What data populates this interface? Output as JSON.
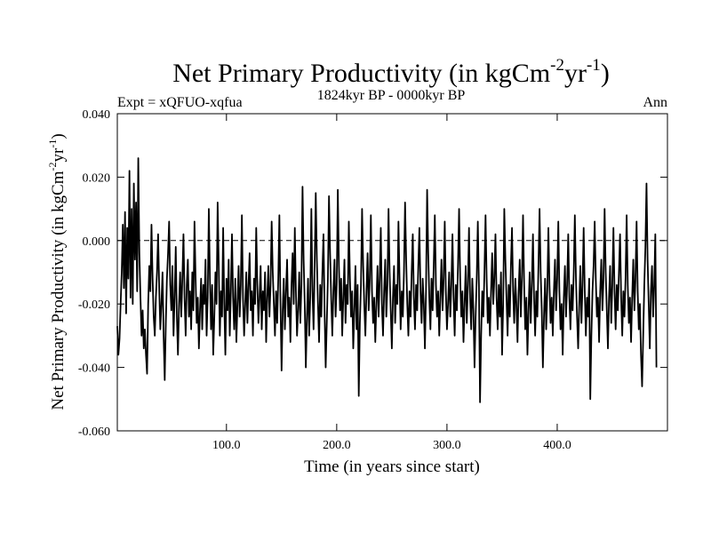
{
  "chart_data": {
    "type": "line",
    "title": "Net Primary Productivity (in kgCm",
    "title_sup1": "-2",
    "title_mid": "yr",
    "title_sup2": "-1",
    "title_end": ")",
    "experiment_label": "Expt = xQFUO-xqfua",
    "period_label": "1824kyr BP - 0000kyr BP",
    "season_label": "Ann",
    "xlabel": "Time (in years since start)",
    "ylabel": "Net Primary Productivity (in kgCm",
    "ylabel_sup1": "-2",
    "ylabel_mid": "yr",
    "ylabel_sup2": "-1",
    "ylabel_end": ")",
    "xlim": [
      1,
      500
    ],
    "ylim": [
      -0.06,
      0.04
    ],
    "x_ticks": [
      100,
      200,
      300,
      400
    ],
    "x_tick_labels": [
      "100.0",
      "200.0",
      "300.0",
      "400.0"
    ],
    "y_ticks": [
      -0.06,
      -0.04,
      -0.02,
      0.0,
      0.02,
      0.04
    ],
    "y_tick_labels": [
      "-0.060",
      "-0.040",
      "-0.020",
      "0.000",
      "0.020",
      "0.040"
    ],
    "reference_line": 0.0,
    "series": [
      {
        "name": "Net Primary Productivity",
        "x_start": 1,
        "x_step": 1,
        "values": [
          -0.027,
          -0.036,
          -0.031,
          -0.02,
          -0.01,
          0.005,
          -0.015,
          0.009,
          -0.023,
          0.004,
          -0.012,
          0.022,
          -0.018,
          0.01,
          -0.02,
          0.018,
          -0.006,
          0.012,
          -0.016,
          0.026,
          -0.004,
          -0.018,
          -0.03,
          -0.022,
          -0.034,
          -0.028,
          -0.036,
          -0.042,
          -0.02,
          -0.008,
          -0.016,
          0.005,
          -0.012,
          -0.024,
          -0.03,
          -0.018,
          -0.01,
          0.002,
          -0.015,
          -0.028,
          -0.02,
          -0.01,
          -0.03,
          -0.044,
          -0.026,
          -0.012,
          -0.004,
          0.006,
          -0.014,
          -0.022,
          -0.008,
          -0.03,
          -0.018,
          -0.002,
          -0.024,
          -0.036,
          -0.02,
          -0.01,
          -0.024,
          -0.012,
          0.002,
          -0.018,
          -0.03,
          -0.014,
          -0.006,
          -0.024,
          -0.016,
          -0.028,
          -0.01,
          -0.022,
          0.006,
          -0.012,
          -0.026,
          -0.018,
          -0.034,
          -0.022,
          -0.012,
          -0.028,
          -0.014,
          -0.02,
          -0.006,
          -0.03,
          -0.018,
          0.01,
          -0.012,
          -0.028,
          -0.014,
          -0.036,
          -0.024,
          -0.01,
          -0.02,
          0.012,
          -0.008,
          -0.03,
          -0.016,
          -0.024,
          0.004,
          -0.02,
          -0.036,
          -0.012,
          -0.022,
          -0.006,
          -0.03,
          -0.016,
          0.002,
          -0.018,
          -0.028,
          -0.012,
          -0.032,
          -0.02,
          -0.008,
          -0.024,
          -0.014,
          0.008,
          -0.018,
          -0.03,
          -0.02,
          -0.01,
          -0.026,
          -0.014,
          -0.004,
          -0.022,
          -0.016,
          -0.03,
          -0.012,
          -0.02,
          0.004,
          -0.014,
          -0.026,
          -0.018,
          -0.008,
          -0.028,
          -0.016,
          -0.022,
          -0.01,
          -0.032,
          -0.018,
          -0.008,
          -0.024,
          -0.014,
          0.006,
          -0.01,
          -0.02,
          -0.03,
          -0.016,
          -0.026,
          -0.012,
          0.008,
          -0.02,
          -0.041,
          -0.022,
          -0.012,
          -0.028,
          -0.016,
          -0.006,
          -0.024,
          -0.018,
          -0.032,
          -0.014,
          -0.004,
          -0.02,
          0.004,
          -0.016,
          -0.03,
          -0.022,
          -0.01,
          -0.026,
          -0.014,
          0.017,
          -0.006,
          -0.02,
          -0.04,
          -0.024,
          -0.012,
          -0.03,
          -0.018,
          0.01,
          -0.016,
          -0.028,
          -0.008,
          0.015,
          -0.006,
          -0.02,
          -0.032,
          -0.014,
          -0.024,
          -0.01,
          0.002,
          -0.022,
          -0.04,
          -0.026,
          -0.012,
          0.014,
          -0.004,
          -0.018,
          -0.03,
          -0.016,
          -0.006,
          -0.024,
          -0.014,
          0.016,
          -0.008,
          -0.022,
          -0.012,
          -0.03,
          -0.018,
          -0.006,
          -0.026,
          -0.014,
          -0.02,
          0.006,
          -0.012,
          -0.024,
          -0.016,
          -0.034,
          -0.022,
          -0.008,
          -0.028,
          -0.014,
          -0.049,
          -0.026,
          -0.014,
          0.01,
          -0.008,
          -0.02,
          -0.03,
          -0.016,
          -0.004,
          -0.022,
          -0.012,
          0.008,
          -0.016,
          -0.026,
          -0.018,
          -0.032,
          -0.02,
          -0.008,
          -0.024,
          -0.012,
          0.004,
          -0.02,
          -0.03,
          -0.016,
          -0.006,
          -0.024,
          -0.014,
          0.01,
          -0.01,
          -0.022,
          -0.034,
          -0.018,
          -0.008,
          -0.026,
          -0.014,
          -0.02,
          0.006,
          -0.012,
          -0.028,
          -0.016,
          -0.024,
          -0.01,
          0.012,
          -0.006,
          -0.02,
          -0.03,
          -0.016,
          -0.024,
          -0.01,
          0.002,
          -0.018,
          -0.028,
          -0.014,
          -0.022,
          -0.008,
          0.004,
          -0.016,
          -0.026,
          -0.012,
          -0.02,
          -0.034,
          -0.016,
          0.016,
          -0.004,
          -0.018,
          -0.028,
          -0.012,
          -0.022,
          -0.008,
          0.008,
          -0.014,
          -0.024,
          -0.016,
          -0.03,
          -0.018,
          -0.006,
          -0.022,
          -0.012,
          0.006,
          -0.016,
          -0.028,
          -0.02,
          -0.01,
          -0.024,
          -0.014,
          0.002,
          -0.018,
          -0.03,
          -0.014,
          -0.022,
          -0.008,
          0.01,
          -0.012,
          -0.024,
          -0.016,
          -0.032,
          -0.02,
          -0.008,
          -0.026,
          -0.014,
          0.004,
          -0.018,
          -0.028,
          -0.012,
          -0.022,
          -0.04,
          -0.024,
          -0.012,
          0.006,
          -0.014,
          -0.051,
          -0.03,
          -0.016,
          -0.024,
          -0.01,
          0.008,
          -0.012,
          -0.026,
          -0.018,
          -0.03,
          -0.016,
          -0.004,
          -0.02,
          -0.012,
          0.002,
          -0.018,
          -0.028,
          -0.014,
          -0.024,
          -0.01,
          -0.036,
          -0.02,
          0.01,
          -0.006,
          -0.018,
          -0.03,
          -0.014,
          -0.024,
          -0.008,
          0.004,
          -0.016,
          -0.026,
          -0.012,
          -0.02,
          -0.032,
          -0.016,
          -0.006,
          -0.024,
          -0.012,
          0.008,
          -0.014,
          -0.028,
          -0.018,
          -0.036,
          -0.022,
          -0.01,
          -0.026,
          -0.014,
          0.002,
          -0.018,
          -0.03,
          -0.016,
          -0.024,
          -0.008,
          0.01,
          -0.01,
          -0.022,
          -0.04,
          -0.024,
          -0.012,
          -0.028,
          -0.016,
          0.004,
          -0.014,
          -0.026,
          -0.018,
          -0.03,
          -0.016,
          -0.006,
          -0.022,
          -0.012,
          0.006,
          -0.016,
          -0.028,
          -0.02,
          -0.036,
          -0.018,
          -0.008,
          -0.024,
          -0.014,
          0.002,
          -0.018,
          -0.028,
          -0.014,
          -0.022,
          -0.01,
          0.008,
          -0.012,
          -0.024,
          -0.034,
          -0.02,
          -0.008,
          -0.026,
          -0.014,
          0.004,
          -0.016,
          -0.03,
          -0.018,
          -0.024,
          -0.012,
          -0.05,
          -0.03,
          -0.016,
          -0.008,
          0.006,
          -0.012,
          -0.024,
          -0.018,
          -0.032,
          -0.016,
          -0.006,
          -0.022,
          -0.012,
          0.01,
          -0.01,
          -0.022,
          -0.034,
          -0.018,
          -0.008,
          -0.026,
          -0.014,
          0.004,
          -0.016,
          -0.028,
          -0.014,
          -0.022,
          -0.01,
          0.002,
          -0.018,
          -0.03,
          -0.016,
          -0.024,
          -0.012,
          0.008,
          -0.014,
          -0.026,
          -0.018,
          -0.032,
          -0.018,
          -0.006,
          -0.022,
          -0.012,
          0.006,
          -0.016,
          -0.028,
          -0.02,
          -0.036,
          -0.046,
          -0.03,
          -0.014,
          -0.002,
          0.018,
          -0.006,
          -0.02,
          -0.034,
          -0.016,
          -0.008,
          -0.024,
          -0.014,
          0.002,
          -0.04
        ]
      }
    ]
  }
}
